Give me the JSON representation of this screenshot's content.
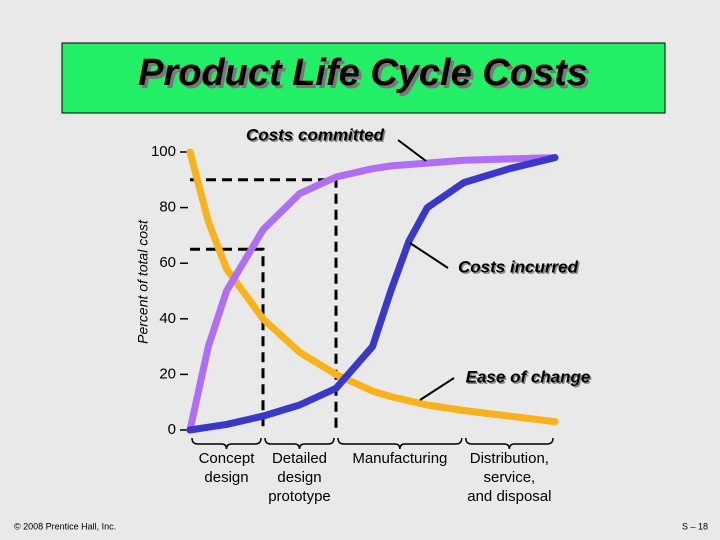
{
  "chart_data": {
    "type": "line",
    "title": "Product Life Cycle Costs",
    "y_label": "Percent of total cost",
    "ylim": [
      0,
      100
    ],
    "yticks": [
      0,
      20,
      40,
      60,
      80,
      100
    ],
    "xlim": [
      0,
      100
    ],
    "x": [
      0,
      5,
      10,
      20,
      30,
      40,
      50,
      55,
      60,
      65,
      75,
      87.5,
      100
    ],
    "series": [
      {
        "name": "Costs committed",
        "color": "#b06ef5",
        "values": [
          0,
          30,
          50,
          72,
          85,
          91,
          94,
          95,
          95.5,
          96,
          97,
          97.5,
          98
        ]
      },
      {
        "name": "Costs incurred",
        "color": "#3a38c8",
        "values": [
          0,
          1,
          2,
          5,
          9,
          15,
          30,
          50,
          68,
          80,
          89,
          94,
          98
        ]
      },
      {
        "name": "Ease of change",
        "color": "#f7b21c",
        "values": [
          100,
          75,
          58,
          40,
          28,
          20,
          14,
          12,
          10.5,
          9,
          7,
          5,
          3
        ]
      }
    ],
    "reference_lines": [
      {
        "x": 40,
        "y": 90
      },
      {
        "x": 20,
        "y": 65
      }
    ],
    "phases": [
      {
        "labels": [
          "Concept",
          "design"
        ],
        "from": 0,
        "to": 20
      },
      {
        "labels": [
          "Detailed",
          "design",
          "prototype"
        ],
        "from": 20,
        "to": 40
      },
      {
        "labels": [
          "Manufacturing"
        ],
        "from": 40,
        "to": 75
      },
      {
        "labels": [
          "Distribution,",
          "service,",
          "and disposal"
        ],
        "from": 75,
        "to": 100
      }
    ]
  },
  "footer": {
    "left": "© 2008 Prentice Hall, Inc.",
    "right": "S – 18"
  }
}
